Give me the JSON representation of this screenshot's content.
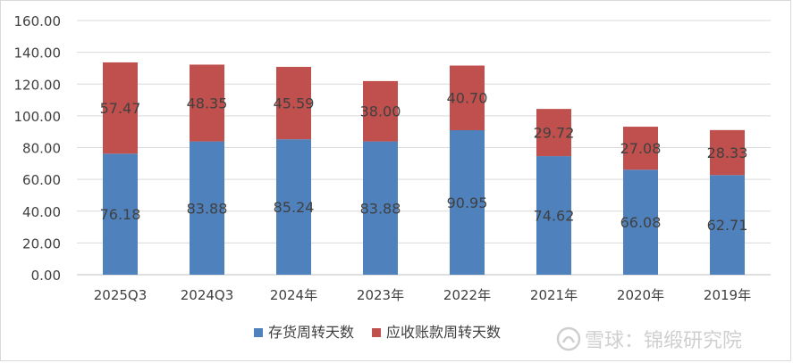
{
  "chart_data": {
    "type": "bar",
    "stacked": true,
    "categories": [
      "2025Q3",
      "2024Q3",
      "2024年",
      "2023年",
      "2022年",
      "2021年",
      "2020年",
      "2019年"
    ],
    "series": [
      {
        "name": "存货周转天数",
        "color": "#4f81bd",
        "values": [
          76.18,
          83.88,
          85.24,
          83.88,
          90.95,
          74.62,
          66.08,
          62.71
        ],
        "labels": [
          "76.18",
          "83.88",
          "85.24",
          "83.88",
          "90.95",
          "74.62",
          "66.08",
          "62.71"
        ]
      },
      {
        "name": "应收账款周转天数",
        "color": "#c0504d",
        "values": [
          57.47,
          48.35,
          45.59,
          38.0,
          40.7,
          29.72,
          27.08,
          28.33
        ],
        "labels": [
          "57.47",
          "48.35",
          "45.59",
          "38.00",
          "40.70",
          "29.72",
          "27.08",
          "28.33"
        ]
      }
    ],
    "ylim": [
      0,
      160
    ],
    "yticks": [
      0,
      20,
      40,
      60,
      80,
      100,
      120,
      140,
      160
    ],
    "ytick_labels": [
      "0.00",
      "20.00",
      "40.00",
      "60.00",
      "80.00",
      "100.00",
      "120.00",
      "140.00",
      "160.00"
    ],
    "grid": true,
    "legend_position": "bottom"
  },
  "watermark": {
    "text": "雪球：锦缎研究院",
    "color": "#cfcfcf"
  }
}
